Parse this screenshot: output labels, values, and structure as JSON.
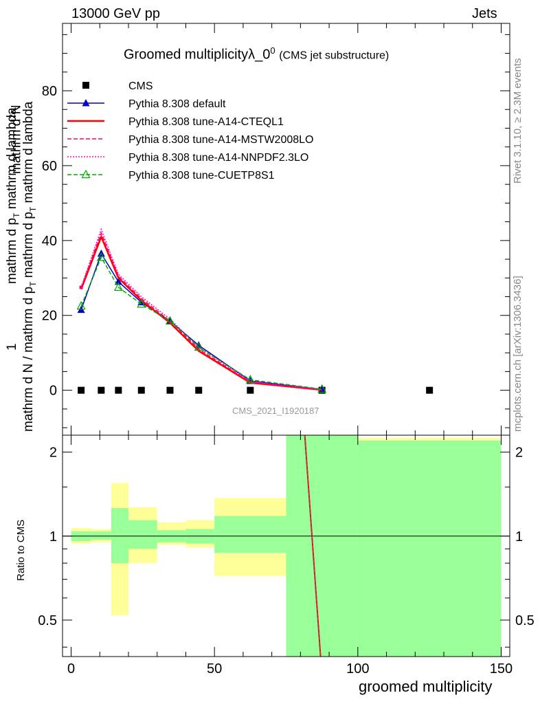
{
  "header": {
    "left": "13000 GeV pp",
    "right": "Jets"
  },
  "side_labels": {
    "rivet": "Rivet 3.1.10, ≥ 2.3M events",
    "mcplots": "mcplots.cern.ch [arXiv:1306.3436]"
  },
  "chart_data": [
    {
      "type": "line",
      "title": "Groomed multiplicityλ_0",
      "title_superscript": "0",
      "subtitle": "(CMS jet substructure)",
      "watermark": "CMS_2021_I1920187",
      "ylabel": {
        "line1": "mathrm d",
        "line1_sup": "2",
        "line1_tail": "N",
        "line2": "mathrm d p",
        "line2_sub": "T",
        "line2_tail": " mathrm d lambda",
        "prefix": "1",
        "denominator": "mathrm d N / mathrm d p",
        "denominator_sub": "T",
        "denominator_tail": " mathrm d p",
        "denominator_sub2": "T",
        "denominator_tail2": " mathrm d lambda"
      },
      "xlim": [
        -3,
        153
      ],
      "ylim": [
        -12,
        98
      ],
      "y_ticks": [
        0,
        20,
        40,
        60,
        80
      ],
      "y_tick_labels": [
        "0",
        "20",
        "40",
        "60",
        "80"
      ],
      "legend_position": "top-left",
      "series": [
        {
          "name": "CMS",
          "color": "#000000",
          "marker": "square",
          "style": "none",
          "x": [
            3.5,
            10.5,
            16.5,
            24.5,
            34.5,
            44.5,
            62.5,
            87.5,
            125
          ],
          "y": [
            0,
            0,
            0,
            0,
            0,
            0,
            0,
            0,
            0
          ]
        },
        {
          "name": "Pythia 8.308 default",
          "color": "#0000cc",
          "marker": "triangle",
          "style": "solid",
          "x": [
            3.5,
            10.5,
            16.5,
            24.5,
            34.5,
            44.5,
            62.5,
            87.5
          ],
          "y": [
            21.5,
            36.5,
            29,
            23.5,
            18.5,
            12,
            2.5,
            0.2
          ]
        },
        {
          "name": "Pythia 8.308 tune-A14-CTEQL1",
          "color": "#ff0000",
          "marker": "none",
          "style": "solid",
          "x": [
            3.5,
            10.5,
            16.5,
            24.5,
            34.5,
            44.5,
            62.5,
            87.5
          ],
          "y": [
            27,
            41,
            30,
            24,
            18,
            10.5,
            2,
            0.1
          ]
        },
        {
          "name": "Pythia 8.308 tune-A14-MSTW2008LO",
          "color": "#ff0066",
          "marker": "none",
          "style": "dashed",
          "x": [
            3.5,
            10.5,
            16.5,
            24.5,
            34.5,
            44.5,
            62.5,
            87.5
          ],
          "y": [
            27.5,
            42,
            30.5,
            24.5,
            18.5,
            11,
            2.2,
            0.1
          ]
        },
        {
          "name": "Pythia 8.308 tune-A14-NNPDF2.3LO",
          "color": "#ff00cc",
          "marker": "none",
          "style": "dotted",
          "x": [
            3.5,
            10.5,
            16.5,
            24.5,
            34.5,
            44.5,
            62.5,
            87.5
          ],
          "y": [
            27.5,
            43,
            31,
            25,
            19,
            11.5,
            2.4,
            0.1
          ]
        },
        {
          "name": "Pythia 8.308 tune-CUETP8S1",
          "color": "#00aa00",
          "marker": "open-triangle",
          "style": "dashed",
          "x": [
            3.5,
            10.5,
            16.5,
            24.5,
            34.5,
            44.5,
            62.5,
            87.5
          ],
          "y": [
            22.5,
            35.5,
            27.5,
            23,
            18.5,
            11.5,
            2.8,
            0.3
          ]
        }
      ]
    },
    {
      "type": "area",
      "ylabel": "Ratio to CMS",
      "xlabel": "groomed multiplicity",
      "xlim": [
        -3,
        153
      ],
      "ylim": [
        0.37,
        2.3
      ],
      "y_scale": "log",
      "x_ticks": [
        0,
        50,
        100,
        150
      ],
      "x_tick_labels": [
        "0",
        "50",
        "100",
        "150"
      ],
      "y_ticks": [
        0.5,
        1,
        2
      ],
      "y_tick_labels": [
        "0.5",
        "1",
        "2"
      ],
      "bands": [
        {
          "x0": 0,
          "x1": 7,
          "yellow": [
            0.94,
            1.07
          ],
          "green": [
            0.96,
            1.04
          ]
        },
        {
          "x0": 7,
          "x1": 14,
          "yellow": [
            0.95,
            1.06
          ],
          "green": [
            0.97,
            1.04
          ]
        },
        {
          "x0": 14,
          "x1": 20,
          "yellow": [
            0.52,
            1.55
          ],
          "green": [
            0.8,
            1.26
          ]
        },
        {
          "x0": 20,
          "x1": 30,
          "yellow": [
            0.8,
            1.27
          ],
          "green": [
            0.9,
            1.14
          ]
        },
        {
          "x0": 30,
          "x1": 40,
          "yellow": [
            0.93,
            1.12
          ],
          "green": [
            0.95,
            1.05
          ]
        },
        {
          "x0": 40,
          "x1": 50,
          "yellow": [
            0.91,
            1.14
          ],
          "green": [
            0.94,
            1.06
          ]
        },
        {
          "x0": 50,
          "x1": 75,
          "yellow": [
            0.72,
            1.37
          ],
          "green": [
            0.87,
            1.18
          ]
        },
        {
          "x0": 75,
          "x1": 100,
          "yellow": [
            0.3,
            3.0
          ],
          "green": [
            0.3,
            3.0
          ]
        },
        {
          "x0": 100,
          "x1": 150,
          "yellow": [
            0.3,
            2.25
          ],
          "green": [
            0.3,
            2.2
          ]
        }
      ],
      "ratio_line": {
        "x": [
          81.5,
          87
        ],
        "y": [
          2.3,
          0.37
        ],
        "color": "#ff0000"
      }
    }
  ]
}
